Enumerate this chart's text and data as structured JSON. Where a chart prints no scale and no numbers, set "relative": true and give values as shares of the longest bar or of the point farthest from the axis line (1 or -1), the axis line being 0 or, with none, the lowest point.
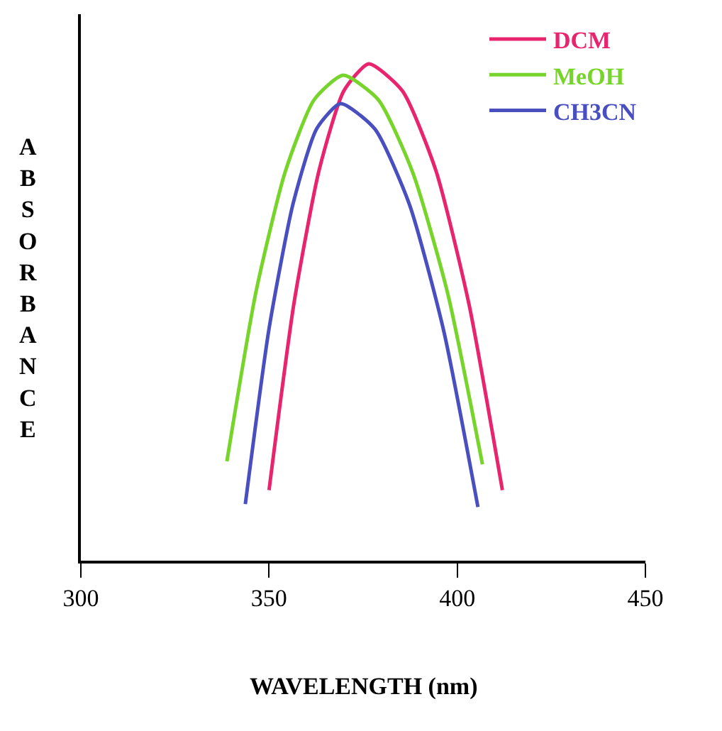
{
  "chart_data": {
    "type": "line",
    "relative": true,
    "xlabel": "WAVELENGTH (nm)",
    "ylabel": "ABSORBANCE",
    "xlim": [
      300,
      450
    ],
    "xticks": [
      300,
      350,
      400,
      450
    ],
    "grid": false,
    "legend": "top right",
    "marker": "none",
    "line_style": "solid",
    "series": [
      {
        "name": "DCM",
        "color": "#e8246e",
        "x": [
          350,
          356.6,
          363.3,
          369.9,
          376.5,
          385.4,
          394.3,
          403.1,
          412
        ],
        "values": [
          0.142,
          0.517,
          0.786,
          0.946,
          1,
          0.946,
          0.786,
          0.517,
          0.142
        ]
      },
      {
        "name": "MeOH",
        "color": "#77d42a",
        "x": [
          338.8,
          346.5,
          354.3,
          362,
          369.7,
          379,
          388.2,
          397.5,
          406.7
        ],
        "values": [
          0.2,
          0.54,
          0.783,
          0.928,
          0.977,
          0.928,
          0.781,
          0.537,
          0.194
        ]
      },
      {
        "name": "CH3CN",
        "color": "#4a4fc0",
        "x": [
          343.7,
          350,
          356.4,
          362.7,
          369,
          378.1,
          387.3,
          396.4,
          405.5
        ],
        "values": [
          0.114,
          0.467,
          0.719,
          0.87,
          0.92,
          0.869,
          0.717,
          0.463,
          0.108
        ]
      }
    ]
  }
}
